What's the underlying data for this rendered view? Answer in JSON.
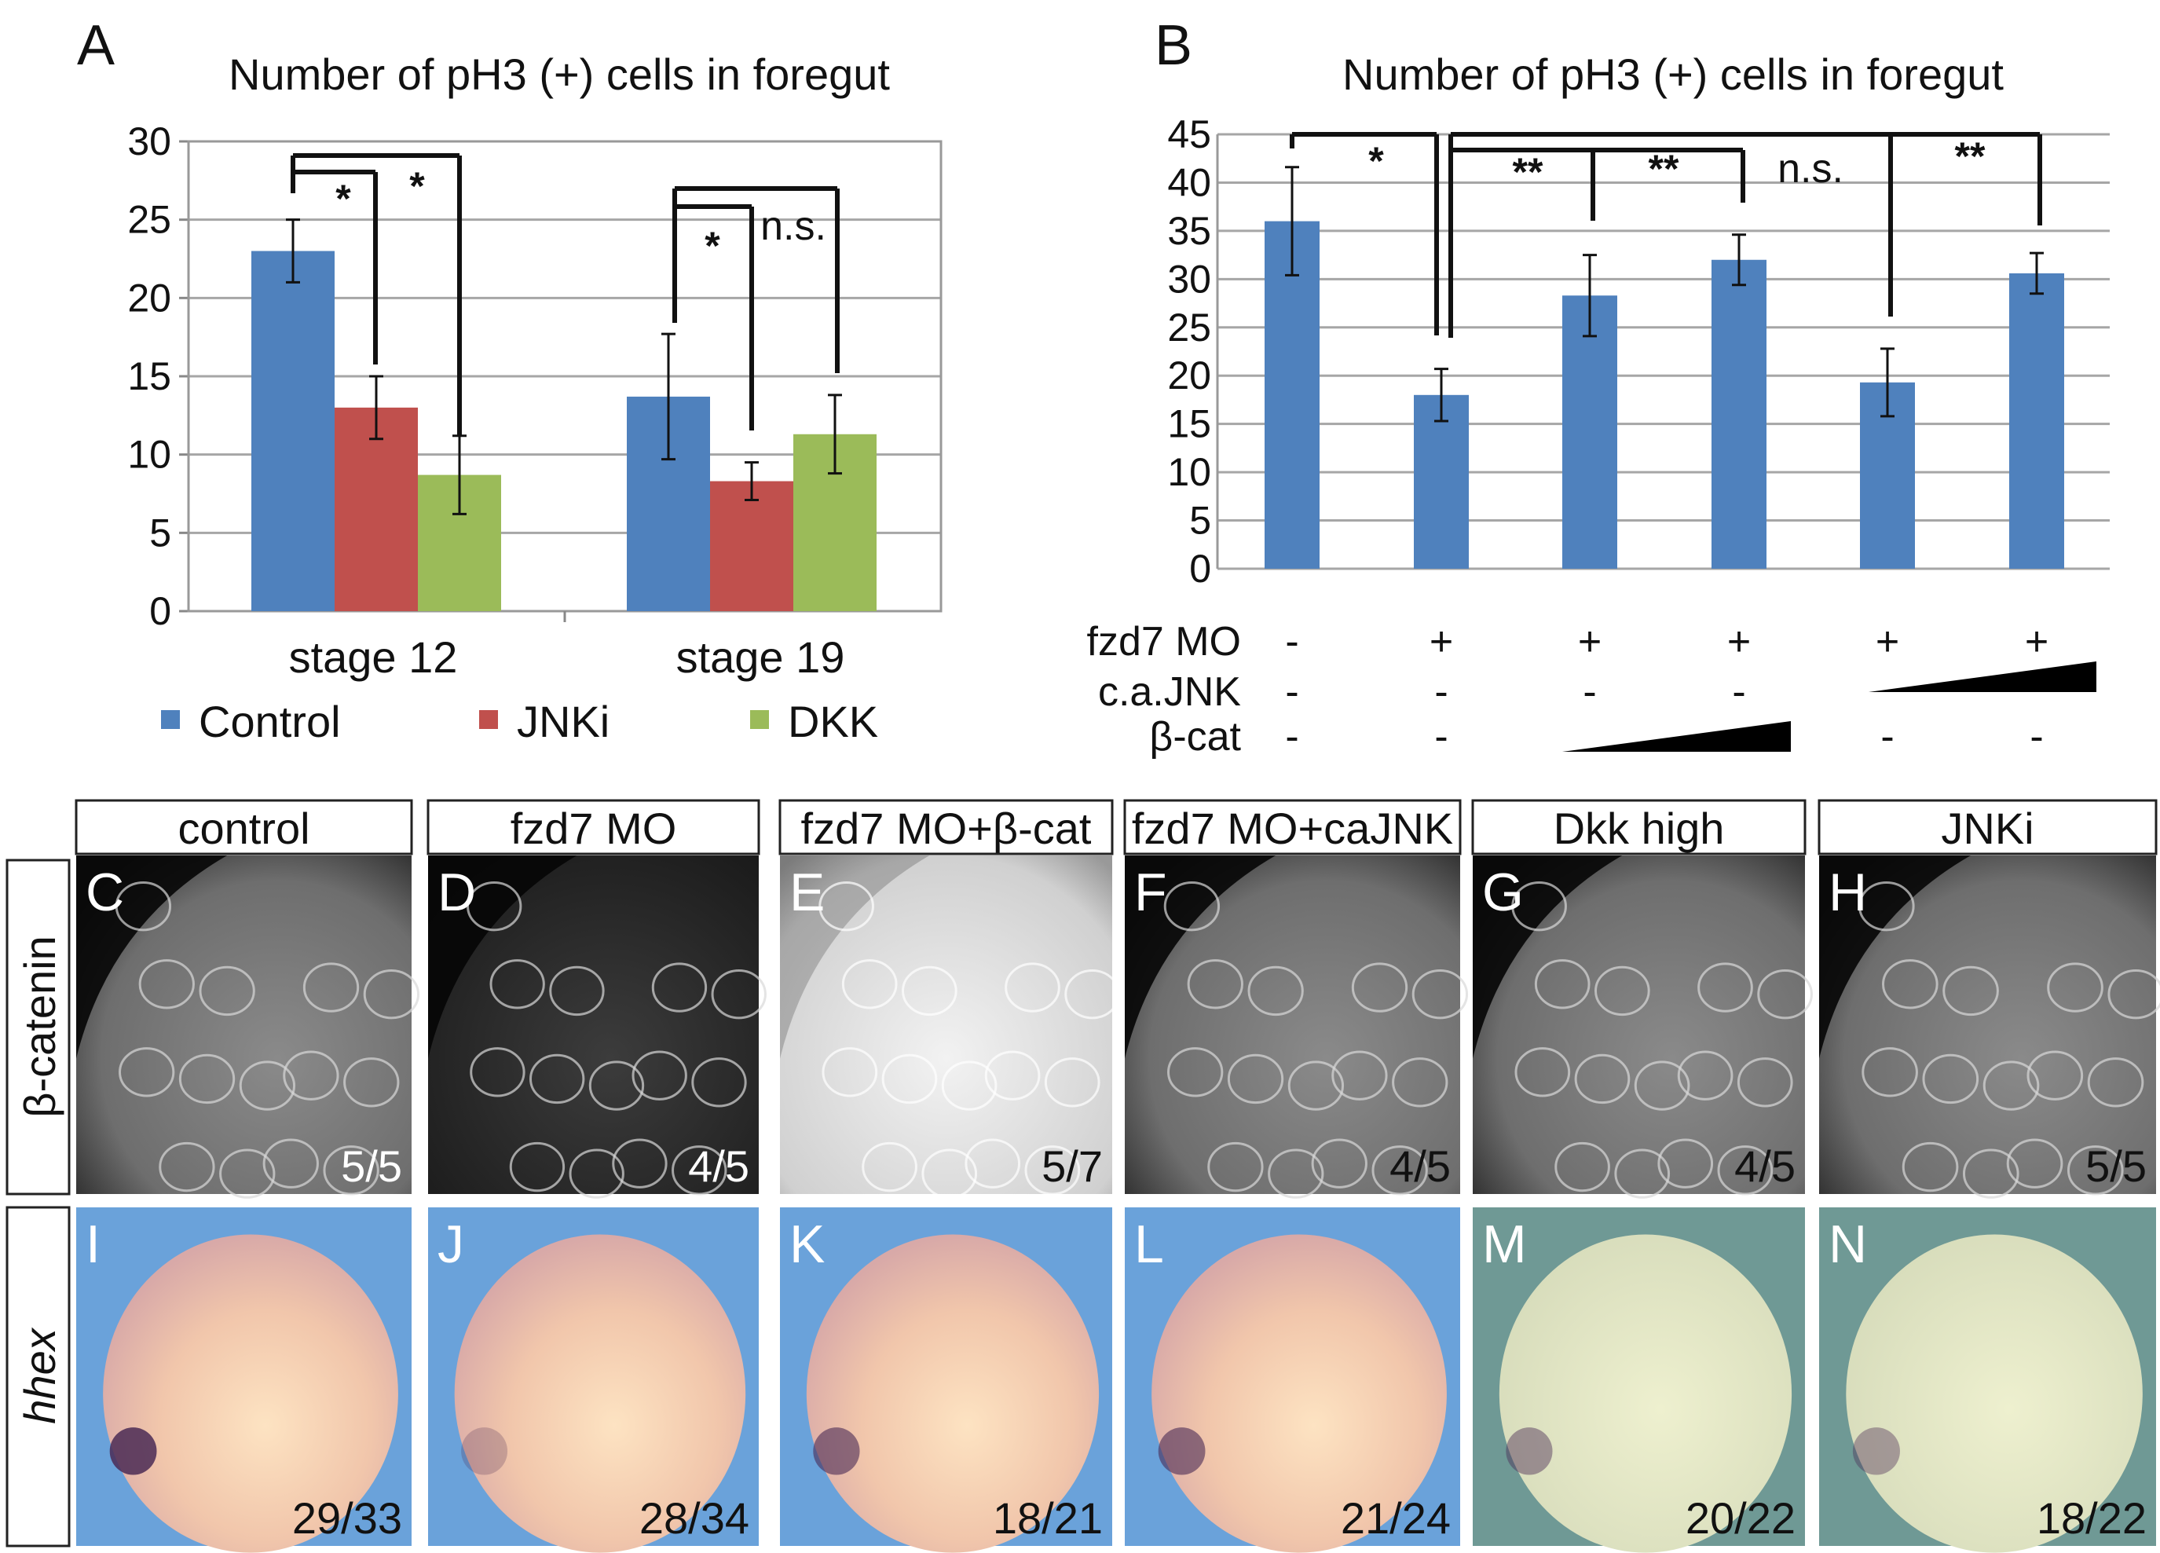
{
  "chart_data": [
    {
      "type": "bar",
      "panel_label": "A",
      "title": "Number of pH3 (+) cells in foregut",
      "categories": [
        "stage 12",
        "stage 19"
      ],
      "series": [
        {
          "name": "Control",
          "values": [
            23.0,
            13.7
          ],
          "errors": [
            2.0,
            4.0
          ],
          "color": "#4f81bd"
        },
        {
          "name": "JNKi",
          "values": [
            13.0,
            8.3
          ],
          "errors": [
            2.0,
            1.2
          ],
          "color": "#c0504d"
        },
        {
          "name": "DKK",
          "values": [
            8.7,
            11.3
          ],
          "errors": [
            2.5,
            2.5
          ],
          "color": "#9bbb59"
        }
      ],
      "ylim": [
        0,
        30
      ],
      "yticks": [
        "0",
        "5",
        "10",
        "15",
        "20",
        "25",
        "30"
      ],
      "grid": true,
      "legend": "bottom",
      "annotations": [
        "*",
        "*",
        "*",
        "n.s."
      ]
    },
    {
      "type": "bar",
      "panel_label": "B",
      "title": "Number of pH3 (+) cells in foregut",
      "values": [
        36.0,
        18.0,
        28.3,
        32.0,
        19.3,
        30.6
      ],
      "errors": [
        5.6,
        2.7,
        4.2,
        2.6,
        3.5,
        2.1
      ],
      "color": "#4f81bd",
      "ylim": [
        0,
        45
      ],
      "yticks": [
        "0",
        "5",
        "10",
        "15",
        "20",
        "25",
        "30",
        "35",
        "40",
        "45"
      ],
      "grid": true,
      "annotations": [
        "*",
        "**",
        "**",
        "n.s.",
        "**"
      ],
      "conditions": [
        {
          "label": "fzd7 MO",
          "marks": [
            "-",
            "+",
            "+",
            "+",
            "+",
            "+"
          ]
        },
        {
          "label": "c.a.JNK",
          "marks": [
            "-",
            "-",
            "-",
            "-",
            "",
            ""
          ],
          "ramp": "increasing over last two"
        },
        {
          "label": "β-cat",
          "marks": [
            "-",
            "-",
            "",
            "",
            "-",
            "-"
          ],
          "ramp": "increasing over bars 3-4"
        }
      ]
    }
  ],
  "images": {
    "headers": [
      "control",
      "fzd7 MO",
      "fzd7 MO+β-cat",
      "fzd7 MO+caJNK",
      "Dkk high",
      "JNKi"
    ],
    "row_labels": [
      "β-catenin",
      "hhex"
    ],
    "row1": [
      {
        "letter": "C",
        "count": "5/5"
      },
      {
        "letter": "D",
        "count": "4/5"
      },
      {
        "letter": "E",
        "count": "5/7"
      },
      {
        "letter": "F",
        "count": "4/5"
      },
      {
        "letter": "G",
        "count": "4/5"
      },
      {
        "letter": "H",
        "count": "5/5"
      }
    ],
    "row2": [
      {
        "letter": "I",
        "count": "29/33"
      },
      {
        "letter": "J",
        "count": "28/34"
      },
      {
        "letter": "K",
        "count": "18/21"
      },
      {
        "letter": "L",
        "count": "21/24"
      },
      {
        "letter": "M",
        "count": "20/22"
      },
      {
        "letter": "N",
        "count": "18/22"
      }
    ]
  }
}
